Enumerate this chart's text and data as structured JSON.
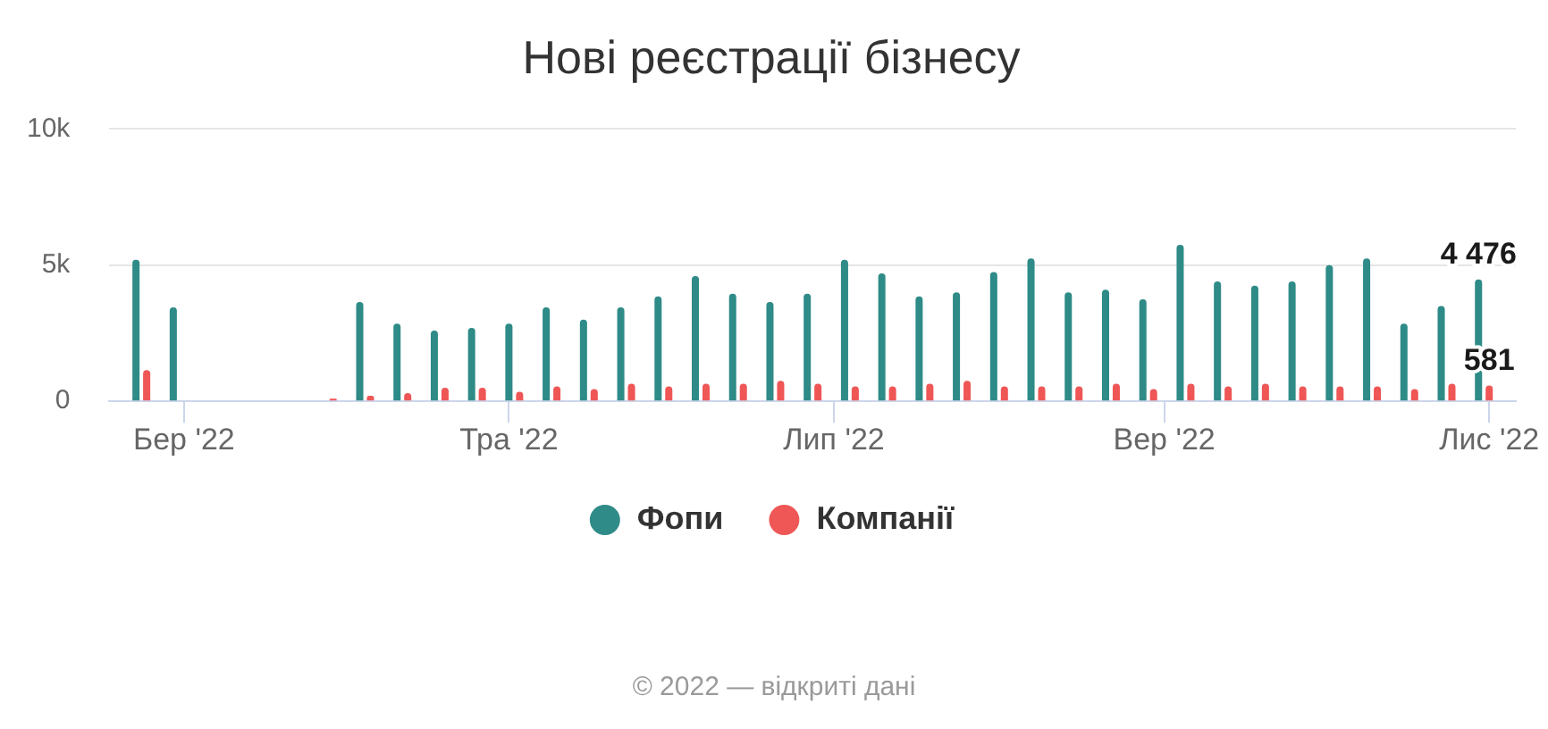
{
  "chart_data": {
    "type": "bar",
    "title": "Нові реєстрації бізнесу",
    "x": [
      "2022-02-21",
      "2022-02-28",
      "2022-03-07",
      "2022-03-14",
      "2022-03-21",
      "2022-03-28",
      "2022-04-04",
      "2022-04-11",
      "2022-04-18",
      "2022-04-25",
      "2022-05-02",
      "2022-05-09",
      "2022-05-16",
      "2022-05-23",
      "2022-05-30",
      "2022-06-06",
      "2022-06-13",
      "2022-06-20",
      "2022-06-27",
      "2022-07-04",
      "2022-07-11",
      "2022-07-18",
      "2022-07-25",
      "2022-08-01",
      "2022-08-08",
      "2022-08-15",
      "2022-08-22",
      "2022-08-29",
      "2022-09-05",
      "2022-09-12",
      "2022-09-19",
      "2022-09-26",
      "2022-10-03",
      "2022-10-10",
      "2022-10-17",
      "2022-10-24",
      "2022-10-31"
    ],
    "series": [
      {
        "name": "Фопи",
        "color": "#2e8b87",
        "values": [
          5200,
          3450,
          0,
          0,
          0,
          0,
          3650,
          2850,
          2600,
          2700,
          2850,
          3450,
          3000,
          3450,
          3850,
          4600,
          3950,
          3650,
          3950,
          5200,
          4700,
          3850,
          4000,
          4750,
          5250,
          4000,
          4100,
          3750,
          5750,
          4400,
          4250,
          4400,
          5000,
          5250,
          2850,
          3500,
          4476
        ],
        "value_labels": [
          null,
          null,
          null,
          null,
          null,
          null,
          null,
          null,
          null,
          null,
          null,
          null,
          null,
          null,
          null,
          null,
          null,
          null,
          null,
          null,
          null,
          null,
          null,
          null,
          null,
          null,
          null,
          null,
          null,
          null,
          null,
          null,
          null,
          null,
          null,
          null,
          "4 476"
        ]
      },
      {
        "name": "Компанії",
        "color": "#ef5656",
        "values": [
          1150,
          0,
          0,
          0,
          0,
          100,
          200,
          300,
          500,
          500,
          350,
          550,
          450,
          650,
          550,
          650,
          650,
          750,
          650,
          550,
          550,
          650,
          750,
          550,
          550,
          550,
          650,
          450,
          650,
          550,
          650,
          550,
          550,
          550,
          450,
          650,
          581
        ],
        "value_labels": [
          null,
          null,
          null,
          null,
          null,
          null,
          null,
          null,
          null,
          null,
          null,
          null,
          null,
          null,
          null,
          null,
          null,
          null,
          null,
          null,
          null,
          null,
          null,
          null,
          null,
          null,
          null,
          null,
          null,
          null,
          null,
          null,
          null,
          null,
          null,
          null,
          "581"
        ]
      }
    ],
    "xlim": [
      "2022-02-15",
      "2022-11-06"
    ],
    "xticks": [
      {
        "value": "2022-03-01",
        "label": "Бер '22"
      },
      {
        "value": "2022-05-01",
        "label": "Тра '22"
      },
      {
        "value": "2022-07-01",
        "label": "Лип '22"
      },
      {
        "value": "2022-09-01",
        "label": "Вер '22"
      },
      {
        "value": "2022-11-01",
        "label": "Лис '22"
      }
    ],
    "ylim": [
      0,
      10000
    ],
    "yticks": [
      0,
      {
        "value": 5000,
        "label": "5k"
      },
      {
        "value": 10000,
        "label": "10k"
      }
    ],
    "grid": "y",
    "legend": "bottom",
    "annotations": [
      "© 2022 — відкриті дані"
    ]
  }
}
